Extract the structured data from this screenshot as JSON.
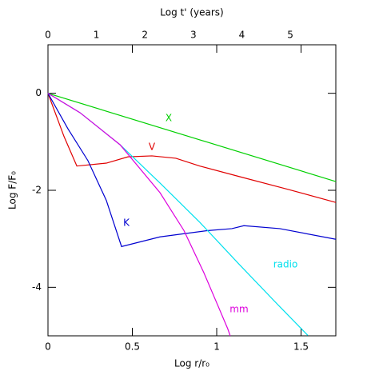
{
  "chart_data": {
    "type": "line",
    "xlabel": "Log r/r₀",
    "ylabel": "Log F/F₀",
    "x2label": "Log t' (years)",
    "xlim": [
      0,
      1.706
    ],
    "xticks": [
      0,
      0.5,
      1,
      1.5
    ],
    "ylim": [
      -5,
      1
    ],
    "yticks": [
      0,
      -2,
      -4
    ],
    "x2lim": [
      0,
      5.94
    ],
    "x2ticks": [
      0,
      1,
      2,
      3,
      4,
      5
    ],
    "series": [
      {
        "name": "X",
        "color": "#00d000",
        "x": [
          0,
          1.706
        ],
        "values": [
          0,
          -1.82
        ]
      },
      {
        "name": "V",
        "color": "#e00000",
        "x": [
          0,
          0.095,
          0.171,
          0.346,
          0.474,
          0.616,
          0.758,
          0.9,
          1.137,
          1.422,
          1.706
        ],
        "values": [
          0,
          -0.89,
          -1.5,
          -1.44,
          -1.31,
          -1.29,
          -1.34,
          -1.5,
          -1.72,
          -1.98,
          -2.25
        ]
      },
      {
        "name": "K",
        "color": "#0000d0",
        "x": [
          0,
          0.118,
          0.237,
          0.346,
          0.436,
          0.664,
          0.948,
          1.09,
          1.161,
          1.374,
          1.706
        ],
        "values": [
          0,
          -0.73,
          -1.39,
          -2.21,
          -3.16,
          -2.96,
          -2.83,
          -2.79,
          -2.73,
          -2.79,
          -3.01
        ]
      },
      {
        "name": "radio",
        "color": "#00e0ee",
        "x": [
          0,
          0.19,
          0.427,
          0.664,
          0.9,
          1.137,
          1.374,
          1.54
        ],
        "values": [
          0,
          -0.4,
          -1.06,
          -1.85,
          -2.66,
          -3.54,
          -4.4,
          -4.99
        ]
      },
      {
        "name": "mm",
        "color": "#dd00dd",
        "x": [
          0,
          0.19,
          0.427,
          0.664,
          0.806,
          0.924,
          1.005,
          1.066,
          1.08
        ],
        "values": [
          0,
          -0.4,
          -1.06,
          -2.05,
          -2.83,
          -3.7,
          -4.36,
          -4.86,
          -5
        ]
      }
    ]
  }
}
